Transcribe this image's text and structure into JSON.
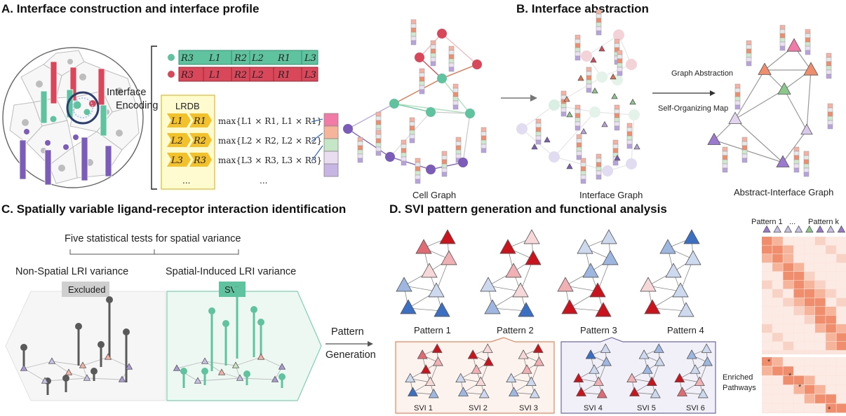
{
  "headers": {
    "a": "A. Interface construction and interface profile",
    "b": "B. Interface abstraction",
    "c": "C. Spatially variable ligand-receptor interaction identification",
    "d": "D. SVI pattern generation and functional analysis"
  },
  "panel_a": {
    "encoding_label": "Interface Encoding",
    "green_bar": [
      "R3",
      "L1",
      "R2",
      "L2",
      "R1",
      "L3"
    ],
    "red_bar": [
      "R3",
      "L1",
      "R2",
      "L2",
      "R1",
      "L3"
    ],
    "lrdb_title": "LRDB",
    "lrdb_rows": [
      {
        "l": "L1",
        "r": "R1",
        "f": "max{L1 × R1, L1 × R1}"
      },
      {
        "l": "L2",
        "r": "R2",
        "f": "max{L2 × R2, L2 × R2}"
      },
      {
        "l": "L3",
        "r": "R3",
        "f": "max{L3 × R3, L3 × R3}"
      }
    ],
    "ellipsis": "...",
    "cell_graph_label": "Cell Graph"
  },
  "panel_b": {
    "interface_graph_label": "Interface Graph",
    "arrow_top": "Graph Abstraction",
    "arrow_bottom": "Self-Organizing Map",
    "abstract_label": "Abstract-Interface Graph"
  },
  "panel_c": {
    "title": "Five statistical tests for spatial variance",
    "left_label": "Non-Spatial LRI variance",
    "right_label": "Spatial-Induced LRI variance",
    "excluded": "Excluded",
    "svi": "SVI",
    "pattern_gen": "Pattern Generation"
  },
  "panel_d": {
    "patterns": [
      "Pattern 1",
      "Pattern 2",
      "Pattern 3",
      "Pattern 4"
    ],
    "svis_left": [
      "SVI 1",
      "SVI 2",
      "SVI 3"
    ],
    "svis_right": [
      "SVI 4",
      "SVI 5",
      "SVI 6"
    ],
    "heat_header_left": "Pattern 1",
    "heat_header_mid": "...",
    "heat_header_right": "Pattern k",
    "enriched": "Enriched Pathways",
    "star": "*"
  },
  "colors": {
    "green": "#5fc3a0",
    "red": "#d9485a",
    "purple": "#7b5cb8",
    "lrdb_bg": "#fffbd0",
    "lrdb_border": "#e5c440",
    "arrow_yellow": "#f3c12a",
    "blue": "#3a6fc4",
    "dark_red": "#c9141e"
  }
}
